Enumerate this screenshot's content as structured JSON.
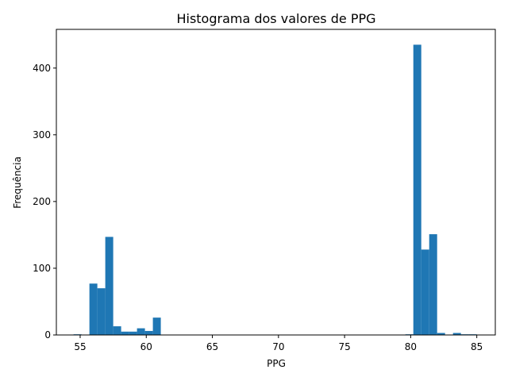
{
  "chart_data": {
    "type": "histogram",
    "title": "Histograma dos valores de PPG",
    "xlabel": "PPG",
    "ylabel": "Frequência",
    "xlim": [
      53.2,
      86.4
    ],
    "ylim": [
      0,
      458
    ],
    "xticks": [
      55,
      60,
      65,
      70,
      75,
      80,
      85
    ],
    "yticks": [
      0,
      100,
      200,
      300,
      400
    ],
    "bar_color": "#1f77b4",
    "bins": [
      {
        "x0": 54.5,
        "x1": 55.1,
        "value": 1
      },
      {
        "x0": 55.7,
        "x1": 56.3,
        "value": 77
      },
      {
        "x0": 56.3,
        "x1": 56.9,
        "value": 70
      },
      {
        "x0": 56.9,
        "x1": 57.5,
        "value": 147
      },
      {
        "x0": 57.5,
        "x1": 58.1,
        "value": 13
      },
      {
        "x0": 58.1,
        "x1": 58.7,
        "value": 5
      },
      {
        "x0": 58.7,
        "x1": 59.3,
        "value": 5
      },
      {
        "x0": 59.3,
        "x1": 59.9,
        "value": 10
      },
      {
        "x0": 59.9,
        "x1": 60.5,
        "value": 6
      },
      {
        "x0": 60.5,
        "x1": 61.1,
        "value": 26
      },
      {
        "x0": 79.6,
        "x1": 80.2,
        "value": 1
      },
      {
        "x0": 80.2,
        "x1": 80.8,
        "value": 435
      },
      {
        "x0": 80.8,
        "x1": 81.4,
        "value": 128
      },
      {
        "x0": 81.4,
        "x1": 82.0,
        "value": 151
      },
      {
        "x0": 82.0,
        "x1": 82.6,
        "value": 3
      },
      {
        "x0": 83.2,
        "x1": 83.8,
        "value": 3
      },
      {
        "x0": 83.8,
        "x1": 84.4,
        "value": 1
      },
      {
        "x0": 84.4,
        "x1": 85.0,
        "value": 1
      }
    ]
  }
}
